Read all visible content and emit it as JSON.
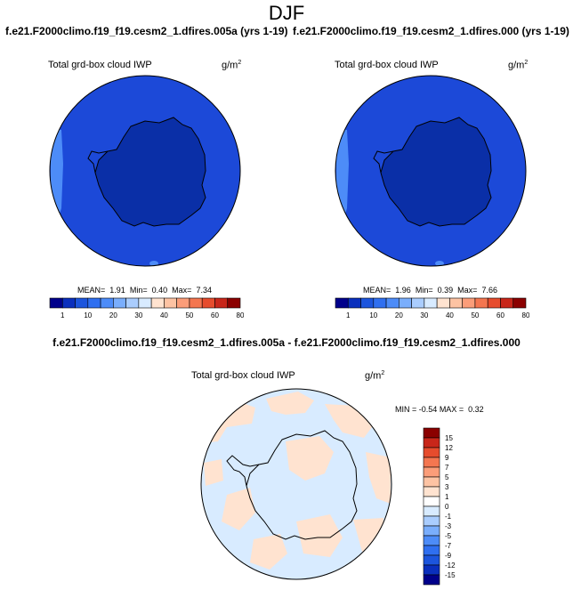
{
  "page": {
    "title": "DJF"
  },
  "panels": {
    "left": {
      "case_title": "f.e21.F2000climo.f19_f19.cesm2_1.dfires.005a (yrs 1-19)",
      "variable": "Total grd-box cloud IWP",
      "units": "g/m",
      "units_exp": "2",
      "stats": {
        "mean_label": "MEAN=",
        "mean": "1.91",
        "min_label": "Min=",
        "min": "0.40",
        "max_label": "Max=",
        "max": "7.34"
      }
    },
    "right": {
      "case_title": "f.e21.F2000climo.f19_f19.cesm2_1.dfires.000 (yrs 1-19)",
      "variable": "Total grd-box cloud IWP",
      "units": "g/m",
      "units_exp": "2",
      "stats": {
        "mean_label": "MEAN=",
        "mean": "1.96",
        "min_label": "Min=",
        "min": "0.39",
        "max_label": "Max=",
        "max": "7.66"
      }
    },
    "diff": {
      "title": "f.e21.F2000climo.f19_f19.cesm2_1.dfires.005a - f.e21.F2000climo.f19_f19.cesm2_1.dfires.000",
      "variable": "Total grd-box cloud IWP",
      "units": "g/m",
      "units_exp": "2",
      "stats": {
        "min_label": "MIN =",
        "min": "-0.54",
        "max_label": "MAX =",
        "max": "0.32"
      }
    }
  },
  "chart_data": [
    {
      "type": "heatmap",
      "projection": "south polar stereographic",
      "title": "f.e21.F2000climo.f19_f19.cesm2_1.dfires.005a (yrs 1-19)",
      "variable": "Total grd-box cloud IWP",
      "units": "g/m2",
      "stats": {
        "mean": 1.91,
        "min": 0.4,
        "max": 7.34
      },
      "colorbar": {
        "orientation": "horizontal",
        "levels": [
          1,
          10,
          20,
          30,
          40,
          50,
          60,
          80
        ],
        "colors": [
          "#00008b",
          "#0a2fbd",
          "#1c55dd",
          "#2f6ff0",
          "#4d8cf8",
          "#7aaefc",
          "#aacdfe",
          "#d8ebff",
          "#ffe3d0",
          "#fdc3a3",
          "#fb9d79",
          "#f47650",
          "#e64c2d",
          "#c8261a",
          "#8b0000"
        ]
      },
      "dominant_colors": {
        "ocean": "#1c49d8",
        "continent": "#0a2fa7"
      }
    },
    {
      "type": "heatmap",
      "projection": "south polar stereographic",
      "title": "f.e21.F2000climo.f19_f19.cesm2_1.dfires.000 (yrs 1-19)",
      "variable": "Total grd-box cloud IWP",
      "units": "g/m2",
      "stats": {
        "mean": 1.96,
        "min": 0.39,
        "max": 7.66
      },
      "colorbar": {
        "orientation": "horizontal",
        "levels": [
          1,
          10,
          20,
          30,
          40,
          50,
          60,
          80
        ],
        "colors": [
          "#00008b",
          "#0a2fbd",
          "#1c55dd",
          "#2f6ff0",
          "#4d8cf8",
          "#7aaefc",
          "#aacdfe",
          "#d8ebff",
          "#ffe3d0",
          "#fdc3a3",
          "#fb9d79",
          "#f47650",
          "#e64c2d",
          "#c8261a",
          "#8b0000"
        ]
      },
      "dominant_colors": {
        "ocean": "#1c49d8",
        "continent": "#0a2fa7"
      }
    },
    {
      "type": "heatmap",
      "projection": "south polar stereographic",
      "title": "f.e21.F2000climo.f19_f19.cesm2_1.dfires.005a - f.e21.F2000climo.f19_f19.cesm2_1.dfires.000",
      "variable": "Total grd-box cloud IWP",
      "units": "g/m2",
      "stats": {
        "min": -0.54,
        "max": 0.32
      },
      "colorbar": {
        "orientation": "vertical",
        "levels": [
          15,
          12,
          9,
          7,
          5,
          3,
          1,
          0,
          -1,
          -3,
          -5,
          -7,
          -9,
          -12,
          -15
        ],
        "colors": [
          "#8b0000",
          "#c8261a",
          "#e64c2d",
          "#f47650",
          "#fb9d79",
          "#fdc3a3",
          "#ffe3d0",
          "#ffffff",
          "#d8ebff",
          "#aacdfe",
          "#7aaefc",
          "#4d8cf8",
          "#2f6ff0",
          "#1c55dd",
          "#0a2fbd",
          "#00008b"
        ]
      },
      "dominant_colors": {
        "negative_small": "#d8ebff",
        "positive_small": "#ffe3d0"
      }
    }
  ]
}
